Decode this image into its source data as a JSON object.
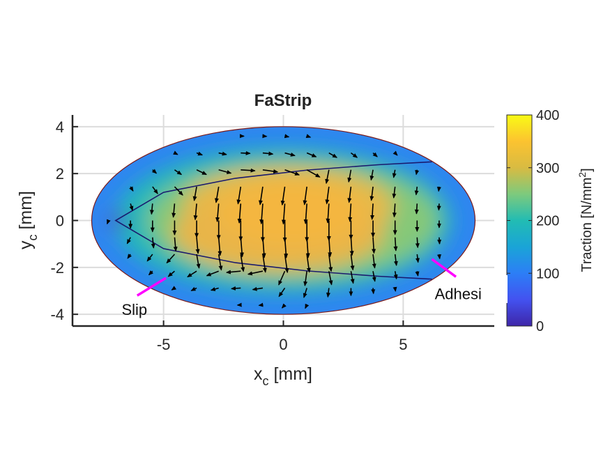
{
  "chart_data": {
    "type": "heatmap",
    "title": "FaStrip",
    "xlabel": {
      "base": "x",
      "sub": "c",
      "unit": " [mm]"
    },
    "ylabel": {
      "base": "y",
      "sub": "c",
      "unit": " [mm]"
    },
    "xlim": [
      -8.8,
      8.8
    ],
    "ylim": [
      -4.5,
      4.5
    ],
    "xticks": [
      -5,
      0,
      5
    ],
    "yticks": [
      -4,
      -2,
      0,
      2,
      4
    ],
    "grid": true,
    "contact_ellipse": {
      "semi_axis_x": 8,
      "semi_axis_y": 4
    },
    "slip_boundary": {
      "apex_x": -7,
      "tip_x": 6.2,
      "tip_y": 2.5,
      "points": [
        [
          -7,
          0
        ],
        [
          -5,
          1.2
        ],
        [
          -2,
          1.8
        ],
        [
          1,
          2.15
        ],
        [
          4,
          2.38
        ],
        [
          6.2,
          2.5
        ]
      ]
    },
    "colorbar": {
      "label": "Traction [N/mm",
      "label_sup": "2",
      "label_end": "]",
      "ticks": [
        0,
        100,
        200,
        300,
        400
      ],
      "range": [
        0,
        400
      ],
      "colormap": "parula"
    },
    "traction_peak": 350,
    "annotations": [
      {
        "text": "Slip",
        "pointer_from": [
          -6.1,
          -3.2
        ],
        "pointer_to": [
          -4.9,
          -2.45
        ]
      },
      {
        "text": "Adhesi",
        "pointer_from": [
          6.2,
          -1.65
        ],
        "pointer_to": [
          7.2,
          -2.4
        ]
      }
    ],
    "quiver": {
      "dx": 0.92,
      "dy": 0.72,
      "x0": -7.3,
      "y0": -3.6,
      "max_len": 1.0
    }
  }
}
